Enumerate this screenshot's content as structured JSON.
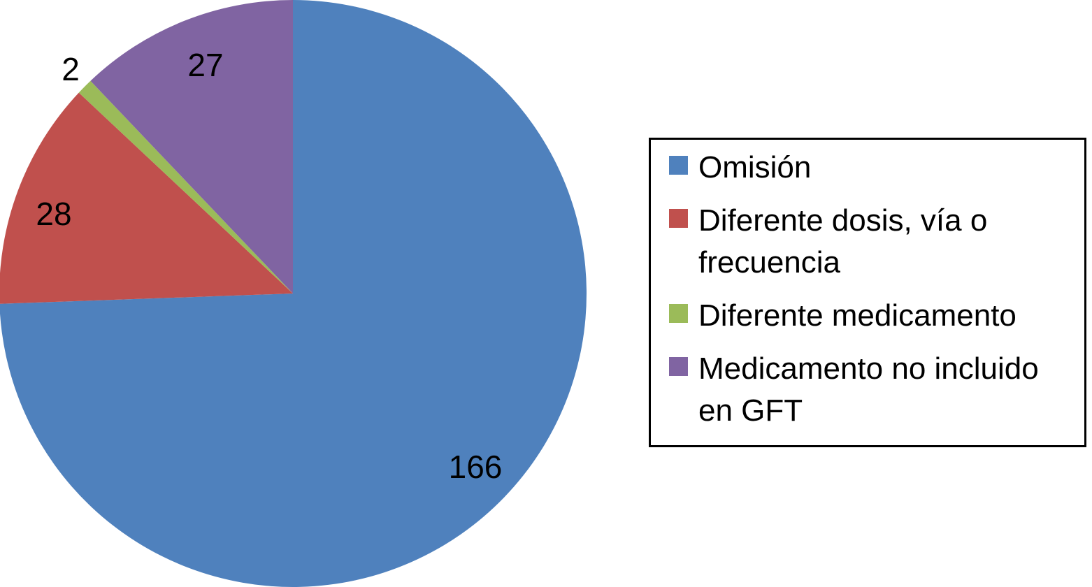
{
  "chart_data": {
    "type": "pie",
    "categories": [
      "Omisión",
      "Diferente dosis, vía o frecuencia",
      "Diferente medicamento",
      "Medicamento no incluido en GFT"
    ],
    "values": [
      166,
      28,
      2,
      27
    ],
    "data_labels": [
      "166",
      "28",
      "2",
      "27"
    ],
    "colors": [
      "#4f81bd",
      "#c0504d",
      "#9bbb59",
      "#8064a2"
    ],
    "start_angle_deg": 0,
    "direction": "clockwise",
    "legend_position": "right",
    "legend_border": true
  }
}
